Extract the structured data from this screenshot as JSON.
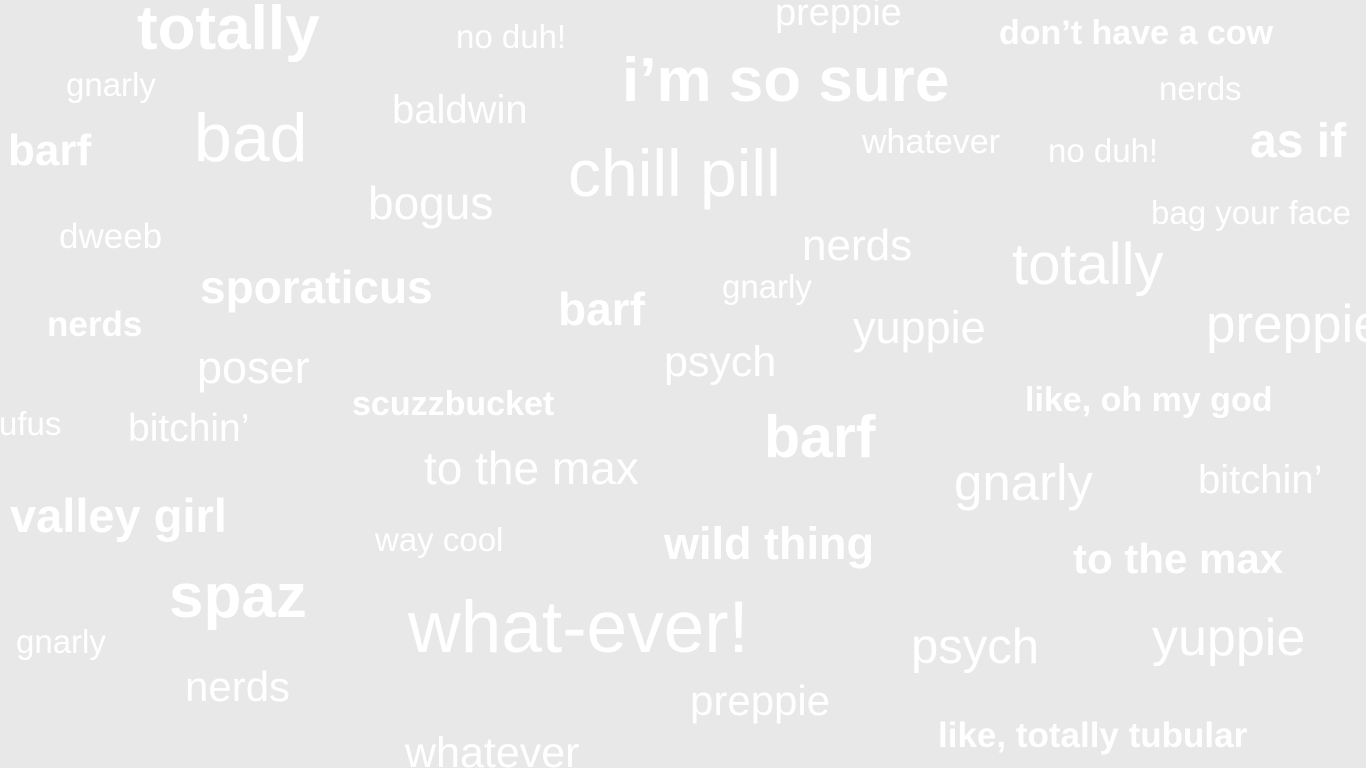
{
  "background_color": "#e8e8e8",
  "text_color": "#ffffff",
  "words": [
    {
      "text": "totally"
    },
    {
      "text": "no duh!"
    },
    {
      "text": "preppie"
    },
    {
      "text": "don’t have a cow"
    },
    {
      "text": "gnarly"
    },
    {
      "text": "i’m so sure"
    },
    {
      "text": "nerds"
    },
    {
      "text": "baldwin"
    },
    {
      "text": "barf"
    },
    {
      "text": "bad"
    },
    {
      "text": "whatever"
    },
    {
      "text": "no duh!"
    },
    {
      "text": "as if"
    },
    {
      "text": "chill pill"
    },
    {
      "text": "bogus"
    },
    {
      "text": "bag your face"
    },
    {
      "text": "dweeb"
    },
    {
      "text": "nerds"
    },
    {
      "text": "totally"
    },
    {
      "text": "sporaticus"
    },
    {
      "text": "gnarly"
    },
    {
      "text": "barf"
    },
    {
      "text": "nerds"
    },
    {
      "text": "yuppie"
    },
    {
      "text": "preppie"
    },
    {
      "text": "poser"
    },
    {
      "text": "psych"
    },
    {
      "text": "scuzzbucket"
    },
    {
      "text": "like, oh my god"
    },
    {
      "text": "rufus"
    },
    {
      "text": "bitchin’"
    },
    {
      "text": "barf"
    },
    {
      "text": "to the max"
    },
    {
      "text": "gnarly"
    },
    {
      "text": "bitchin’"
    },
    {
      "text": "valley girl"
    },
    {
      "text": "way cool"
    },
    {
      "text": "wild thing"
    },
    {
      "text": "to the max"
    },
    {
      "text": "spaz"
    },
    {
      "text": "what-ever!"
    },
    {
      "text": "gnarly"
    },
    {
      "text": "psych"
    },
    {
      "text": "yuppie"
    },
    {
      "text": "nerds"
    },
    {
      "text": "preppie"
    },
    {
      "text": "like, totally tubular"
    },
    {
      "text": "whatever"
    }
  ]
}
